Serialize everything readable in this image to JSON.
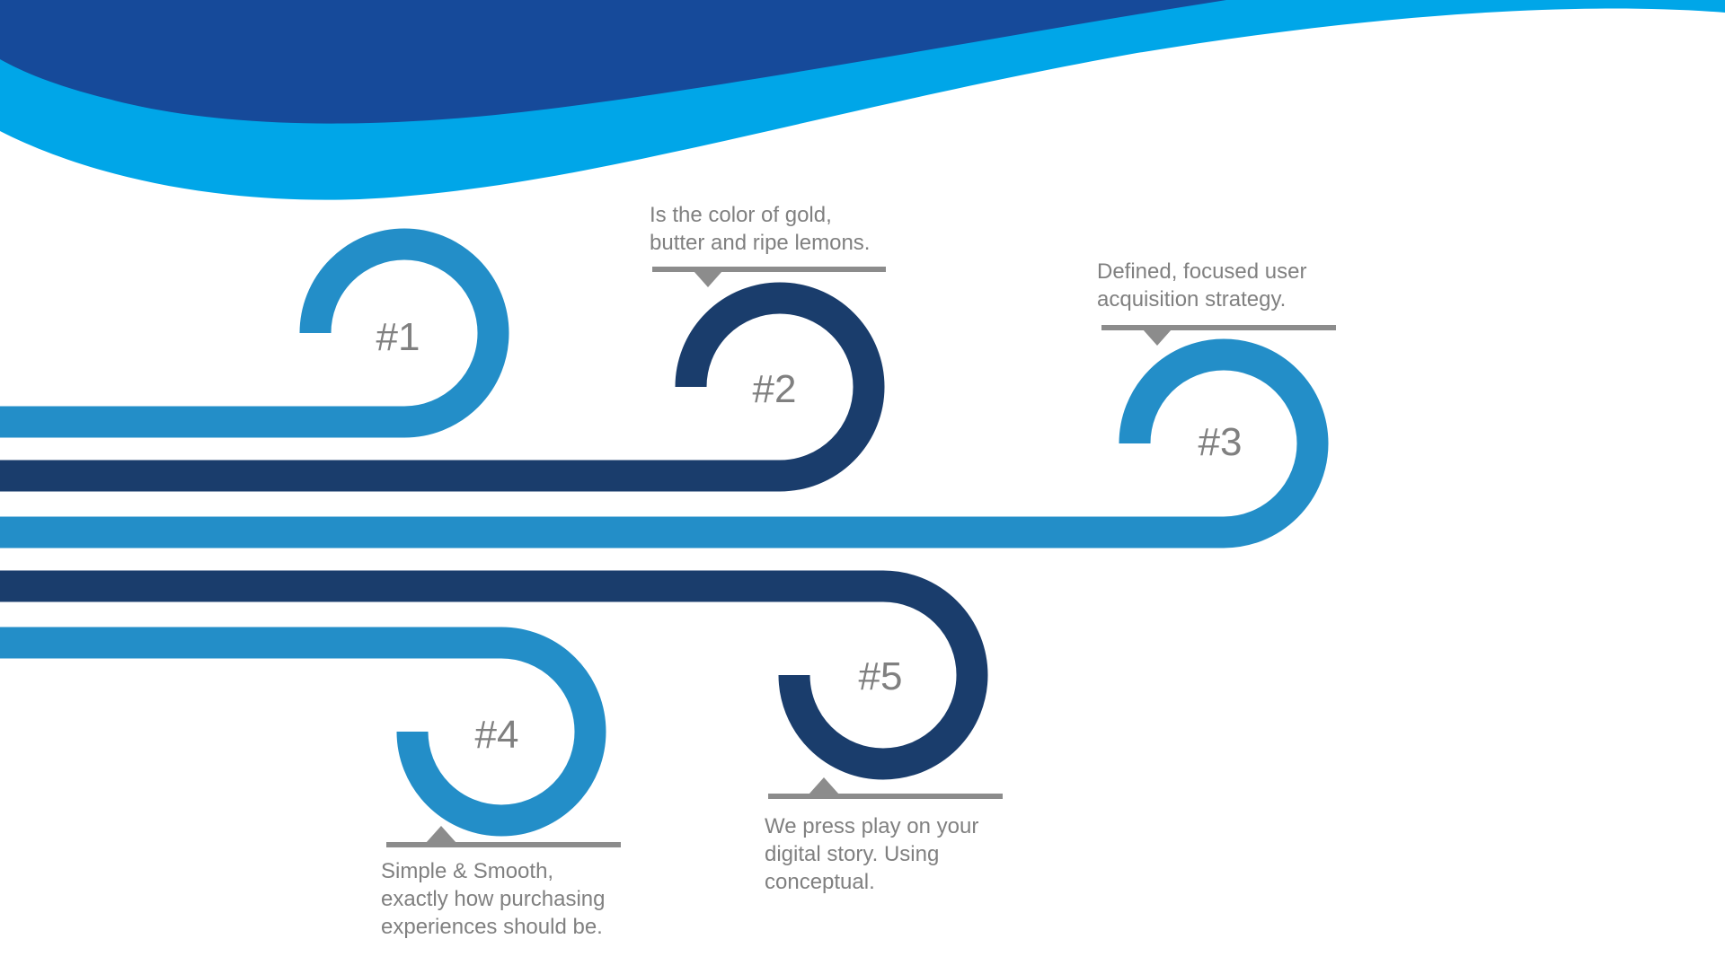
{
  "colors": {
    "wave_dark": "#164A9A",
    "wave_light": "#00A6E8",
    "track_light": "#238EC8",
    "track_dark": "#1A3D6C",
    "text": "#808080",
    "callout": "#8C8C8C",
    "background": "#FFFFFF"
  },
  "steps": [
    {
      "number": "#1",
      "tone": "light",
      "caption": ""
    },
    {
      "number": "#2",
      "tone": "dark",
      "caption": "Is the color of gold,\nbutter and ripe lemons."
    },
    {
      "number": "#3",
      "tone": "light",
      "caption": "Defined, focused user\nacquisition strategy."
    },
    {
      "number": "#4",
      "tone": "light",
      "caption": "Simple & Smooth,\nexactly how purchasing\nexperiences should be."
    },
    {
      "number": "#5",
      "tone": "dark",
      "caption": "We press play on your\ndigital story. Using\nconceptual."
    }
  ]
}
